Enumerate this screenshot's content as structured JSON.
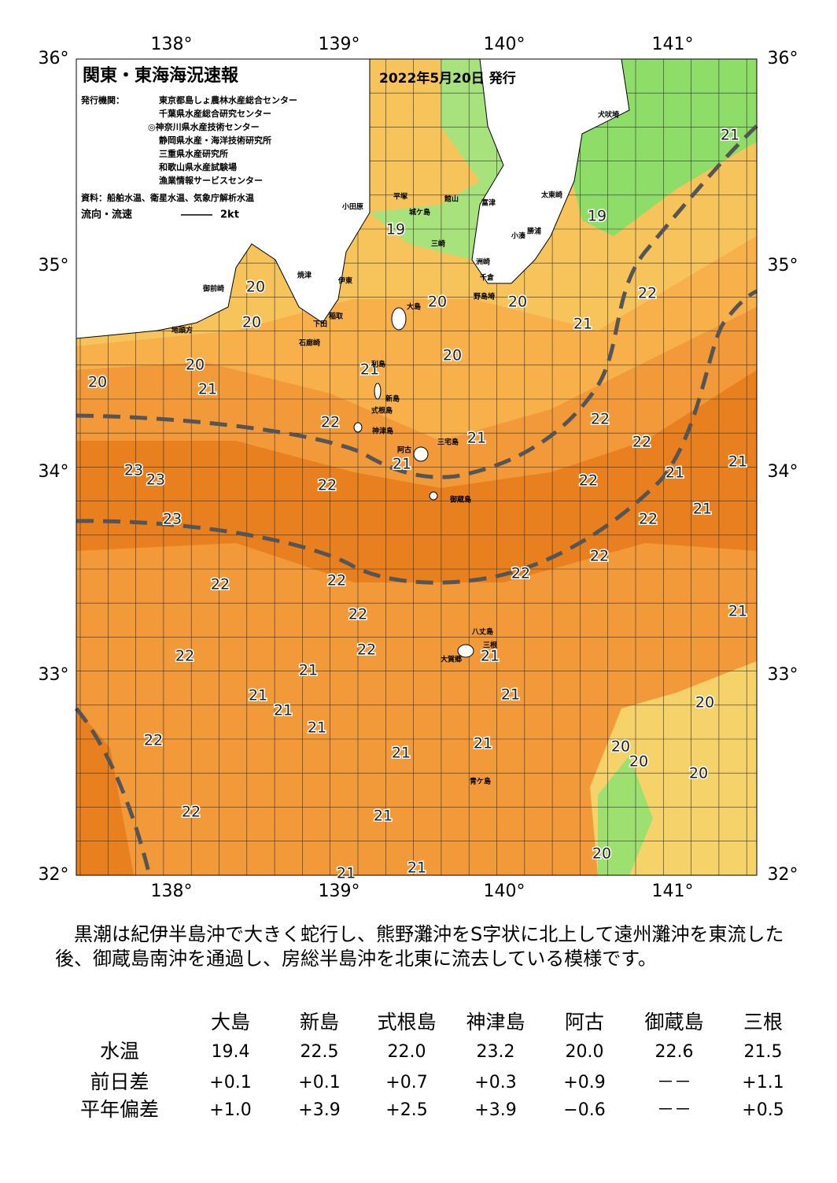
{
  "header": {
    "title": "関東・東海海況速報",
    "date": "2022年5月20日 発行",
    "issuer_label": "発行機関：",
    "issuers": [
      "東京都島しょ農林水産総合センター",
      "千葉県水産総合研究センター",
      "◎神奈川県水産技術センター",
      "静岡県水産・海洋技術研究所",
      "三重県水産研究所",
      "和歌山県水産試験場",
      "漁業情報サービスセンター"
    ],
    "source": "資料：船舶水温、衛星水温、気象庁解析水温",
    "flow_label": "流向・流速",
    "flow_scale": "2kt"
  },
  "map": {
    "longitude_labels": [
      "138°",
      "139°",
      "140°",
      "141°"
    ],
    "latitude_labels": [
      "36°",
      "35°",
      "34°",
      "33°",
      "32°"
    ],
    "temperature_labels": [
      "21",
      "19",
      "22",
      "21",
      "20",
      "20",
      "20",
      "19",
      "20",
      "20",
      "20",
      "20",
      "21",
      "21",
      "22",
      "22",
      "22",
      "21",
      "21",
      "21",
      "21",
      "22",
      "22",
      "23",
      "23",
      "23",
      "21",
      "22",
      "22",
      "22",
      "22",
      "22",
      "22",
      "21",
      "22",
      "21",
      "22",
      "21",
      "21",
      "21",
      "21",
      "20",
      "21",
      "22",
      "21",
      "20",
      "20",
      "21",
      "20",
      "22",
      "21",
      "20",
      "21",
      "21"
    ],
    "place_names": [
      "犬吠埼",
      "太東崎",
      "勝浦",
      "小湊",
      "洲崎",
      "野島埼",
      "千倉",
      "館山",
      "富津",
      "平塚",
      "城ケ島",
      "三崎",
      "小田原",
      "伊東",
      "稲取",
      "下田",
      "石廊崎",
      "大島",
      "利島",
      "新島",
      "式根島",
      "神津島",
      "三宅島",
      "阿古",
      "御蔵島",
      "八丈島",
      "三根",
      "大賀郷",
      "青ケ島",
      "焼津",
      "御前崎",
      "地頭方"
    ]
  },
  "summary": "　黒潮は紀伊半島沖で大きく蛇行し、熊野灘沖をS字状に北上して遠州灘沖を東流した後、御蔵島南沖を通過し、房総半島沖を北東に流去している模様です。",
  "table": {
    "columns": [
      "大島",
      "新島",
      "式根島",
      "神津島",
      "阿古",
      "御蔵島",
      "三根"
    ],
    "rows": [
      [
        "水温",
        "19.4",
        "22.5",
        "22.0",
        "23.2",
        "20.0",
        "22.6",
        "21.5"
      ],
      [
        "前日差",
        "+0.1",
        "+0.1",
        "+0.7",
        "+0.3",
        "+0.9",
        "－－",
        "+1.1"
      ],
      [
        "平年偏差",
        "+1.0",
        "+3.9",
        "+2.5",
        "+3.9",
        "−0.6",
        "－－",
        "+0.5"
      ]
    ]
  }
}
